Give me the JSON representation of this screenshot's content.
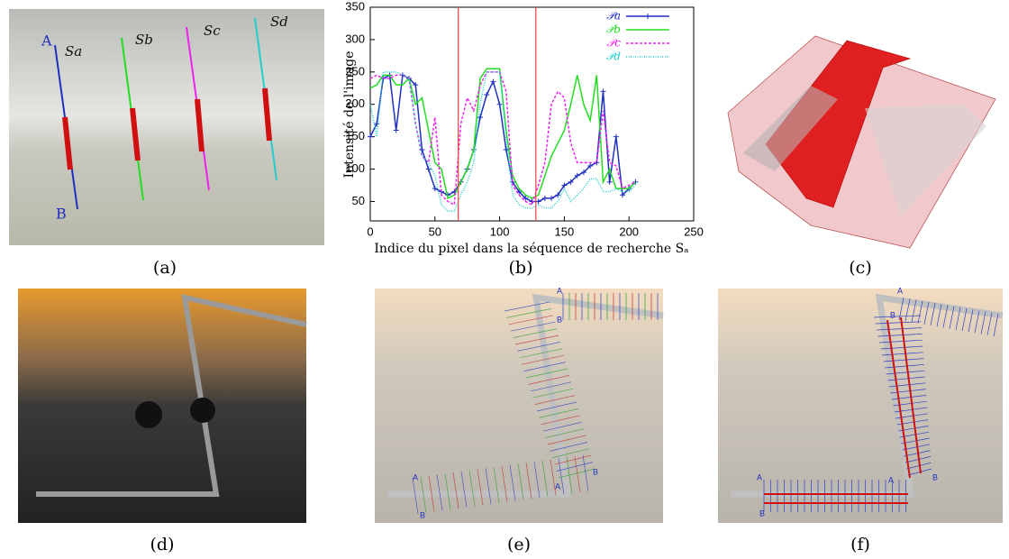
{
  "chart_data": {
    "type": "line",
    "xlabel": "Indice du pixel dans la séquence de recherche Sₐ",
    "ylabel": "Intensité de l'image",
    "x": [
      0,
      5,
      10,
      15,
      20,
      25,
      30,
      35,
      40,
      45,
      50,
      55,
      60,
      65,
      70,
      75,
      80,
      85,
      90,
      95,
      100,
      105,
      110,
      115,
      120,
      125,
      130,
      135,
      140,
      145,
      150,
      155,
      160,
      165,
      170,
      175,
      180,
      185,
      190,
      195,
      200,
      205
    ],
    "series": [
      {
        "name": "𝒫a",
        "color": "#1f2fbf",
        "style": "solid",
        "marker": "+",
        "values": [
          150,
          170,
          240,
          245,
          160,
          245,
          240,
          230,
          130,
          100,
          70,
          65,
          60,
          65,
          80,
          100,
          130,
          180,
          215,
          235,
          200,
          130,
          80,
          65,
          55,
          50,
          50,
          55,
          55,
          60,
          75,
          80,
          90,
          95,
          105,
          110,
          220,
          80,
          150,
          60,
          70,
          80
        ]
      },
      {
        "name": "𝒫b",
        "color": "#22dd22",
        "style": "solid",
        "values": [
          225,
          230,
          245,
          245,
          230,
          230,
          240,
          200,
          210,
          160,
          110,
          100,
          55,
          60,
          80,
          100,
          130,
          240,
          255,
          255,
          255,
          160,
          90,
          70,
          60,
          55,
          60,
          90,
          120,
          140,
          160,
          200,
          245,
          200,
          175,
          245,
          80,
          100,
          70,
          70,
          70,
          80
        ]
      },
      {
        "name": "𝒫c",
        "color": "#ee22ee",
        "style": "dashed",
        "values": [
          240,
          245,
          240,
          240,
          245,
          245,
          240,
          170,
          120,
          110,
          180,
          60,
          50,
          45,
          170,
          210,
          190,
          230,
          250,
          250,
          250,
          220,
          75,
          60,
          50,
          45,
          75,
          110,
          200,
          220,
          210,
          140,
          110,
          110,
          110,
          110,
          190,
          110,
          105,
          70,
          75,
          80
        ]
      },
      {
        "name": "𝒫d",
        "color": "#22cccc",
        "style": "dotted",
        "values": [
          200,
          150,
          250,
          250,
          250,
          245,
          240,
          170,
          120,
          110,
          90,
          45,
          35,
          35,
          60,
          80,
          110,
          200,
          250,
          250,
          250,
          150,
          60,
          45,
          40,
          40,
          45,
          40,
          40,
          50,
          70,
          50,
          60,
          70,
          85,
          85,
          65,
          65,
          70,
          65,
          65,
          75
        ]
      }
    ],
    "vlines": [
      68,
      128
    ],
    "vline_color": "#ee4444",
    "xlim": [
      0,
      250
    ],
    "xticks": [
      0,
      50,
      100,
      150,
      200,
      250
    ],
    "ylim": [
      20,
      350
    ],
    "yticks": [
      50,
      100,
      150,
      200,
      250,
      300,
      350
    ],
    "legend": "upper right",
    "grid": false
  },
  "figure": {
    "captions": [
      "(a)",
      "(b)",
      "(c)",
      "(d)",
      "(e)",
      "(f)"
    ],
    "panel_a_labels": [
      "A",
      "B",
      "Sa",
      "Sb",
      "Sc",
      "Sd"
    ],
    "panel_e_labels": [
      "A",
      "B",
      "A",
      "B",
      "A",
      "B"
    ],
    "panel_f_labels": [
      "A",
      "B",
      "A",
      "B",
      "A",
      "B"
    ]
  }
}
